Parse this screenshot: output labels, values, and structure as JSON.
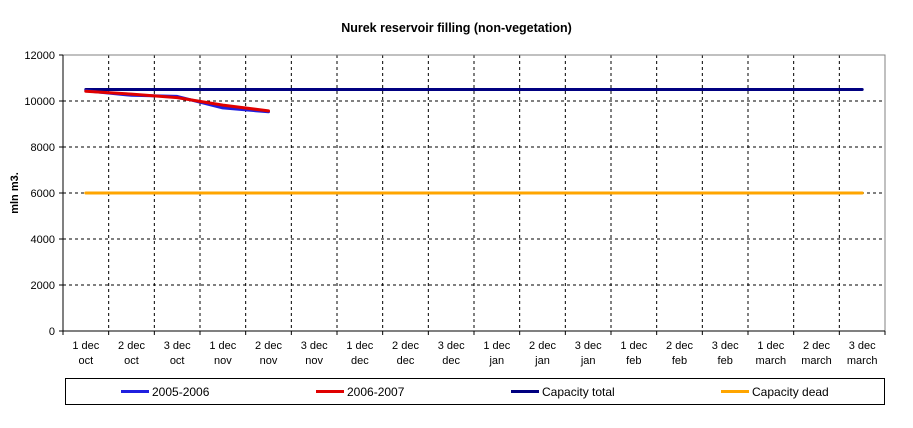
{
  "chart_data": {
    "type": "line",
    "title": "Nurek reservoir filling (non-vegetation)",
    "ylabel": "mln m3.",
    "xlabel": "",
    "ylim": [
      0,
      12000
    ],
    "yticks": [
      0,
      2000,
      4000,
      6000,
      8000,
      10000,
      12000
    ],
    "grid": true,
    "legend_position": "bottom",
    "categories": [
      [
        "1 dec",
        "oct"
      ],
      [
        "2 dec",
        "oct"
      ],
      [
        "3 dec",
        "oct"
      ],
      [
        "1 dec",
        "nov"
      ],
      [
        "2 dec",
        "nov"
      ],
      [
        "3 dec",
        "nov"
      ],
      [
        "1 dec",
        "dec"
      ],
      [
        "2 dec",
        "dec"
      ],
      [
        "3 dec",
        "dec"
      ],
      [
        "1 dec",
        "jan"
      ],
      [
        "2 dec",
        "jan"
      ],
      [
        "3 dec",
        "jan"
      ],
      [
        "1 dec",
        "feb"
      ],
      [
        "2 dec",
        "feb"
      ],
      [
        "3 dec",
        "feb"
      ],
      [
        "1 dec",
        "march"
      ],
      [
        "2 dec",
        "march"
      ],
      [
        "3 dec",
        "march"
      ]
    ],
    "series": [
      {
        "name": "2005-2006",
        "color": "#1f1fdf",
        "values": [
          10450,
          10250,
          10200,
          9700,
          9530,
          null,
          null,
          null,
          null,
          null,
          null,
          null,
          null,
          null,
          null,
          null,
          null,
          null
        ]
      },
      {
        "name": "2006-2007",
        "color": "#e00000",
        "values": [
          10420,
          10300,
          10150,
          9820,
          9570,
          null,
          null,
          null,
          null,
          null,
          null,
          null,
          null,
          null,
          null,
          null,
          null,
          null
        ]
      },
      {
        "name": "Capacity total",
        "color": "#000080",
        "values": [
          10500,
          10500,
          10500,
          10500,
          10500,
          10500,
          10500,
          10500,
          10500,
          10500,
          10500,
          10500,
          10500,
          10500,
          10500,
          10500,
          10500,
          10500
        ]
      },
      {
        "name": "Capacity dead",
        "color": "#ffa500",
        "values": [
          6000,
          6000,
          6000,
          6000,
          6000,
          6000,
          6000,
          6000,
          6000,
          6000,
          6000,
          6000,
          6000,
          6000,
          6000,
          6000,
          6000,
          6000
        ]
      }
    ]
  }
}
